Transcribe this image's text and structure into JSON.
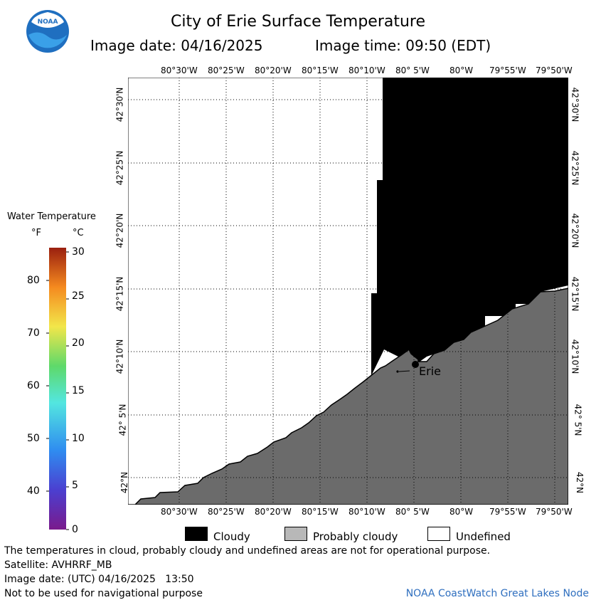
{
  "header": {
    "logo_text": "NOAA",
    "title": "City of Erie Surface Temperature",
    "image_date": "Image date: 04/16/2025",
    "image_time": "Image time: 09:50 (EDT)"
  },
  "map": {
    "lon_labels": [
      "80°30'W",
      "80°25'W",
      "80°20'W",
      "80°15'W",
      "80°10'W",
      "80° 5'W",
      "80°W",
      "79°55'W",
      "79°50'W"
    ],
    "lat_labels": [
      "42°30'N",
      "42°25'N",
      "42°20'N",
      "42°15'N",
      "42°10'N",
      "42° 5'N",
      "42°N"
    ],
    "city_label": "Erie",
    "colors": {
      "cloudy": "#000000",
      "probably_cloudy": "#6b6b6b",
      "undefined": "#ffffff"
    }
  },
  "legend": {
    "title": "Water Temperature",
    "unit_f": "°F",
    "unit_c": "°C",
    "f_labels": [
      "80",
      "70",
      "60",
      "50",
      "40"
    ],
    "c_labels": [
      "30",
      "25",
      "20",
      "15",
      "10",
      "5",
      "0"
    ]
  },
  "key": {
    "cloudy": "Cloudy",
    "probably_cloudy": "Probably cloudy",
    "undefined": "Undefined"
  },
  "footer": {
    "note": "The temperatures in cloud, probably cloudy and undefined areas are not for operational purpose.",
    "satellite": "Satellite: AVHRRF_MB",
    "image_date_utc": "Image date: (UTC) 04/16/2025   13:50",
    "nav_warning": "Not to be used for navigational purpose",
    "credit": "NOAA CoastWatch Great Lakes Node"
  }
}
